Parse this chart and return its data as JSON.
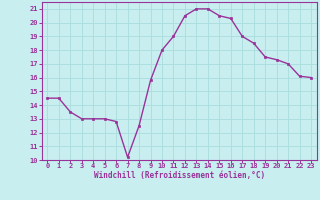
{
  "x": [
    0,
    1,
    2,
    3,
    4,
    5,
    6,
    7,
    8,
    9,
    10,
    11,
    12,
    13,
    14,
    15,
    16,
    17,
    18,
    19,
    20,
    21,
    22,
    23
  ],
  "y": [
    14.5,
    14.5,
    13.5,
    13.0,
    13.0,
    13.0,
    12.8,
    10.2,
    12.5,
    15.8,
    18.0,
    19.0,
    20.5,
    21.0,
    21.0,
    20.5,
    20.3,
    19.0,
    18.5,
    17.5,
    17.3,
    17.0,
    16.1,
    16.0
  ],
  "line_color": "#993399",
  "marker": "s",
  "markersize": 2,
  "linewidth": 1.0,
  "bg_color": "#c8eef0",
  "grid_color": "#aadddd",
  "xlabel": "Windchill (Refroidissement éolien,°C)",
  "xlabel_color": "#993399",
  "tick_color": "#993399",
  "spine_color": "#993399",
  "ylim": [
    10,
    21.5
  ],
  "xlim": [
    -0.5,
    23.5
  ],
  "yticks": [
    10,
    11,
    12,
    13,
    14,
    15,
    16,
    17,
    18,
    19,
    20,
    21
  ],
  "xticks": [
    0,
    1,
    2,
    3,
    4,
    5,
    6,
    7,
    8,
    9,
    10,
    11,
    12,
    13,
    14,
    15,
    16,
    17,
    18,
    19,
    20,
    21,
    22,
    23
  ],
  "tick_fontsize": 5,
  "xlabel_fontsize": 5.5
}
